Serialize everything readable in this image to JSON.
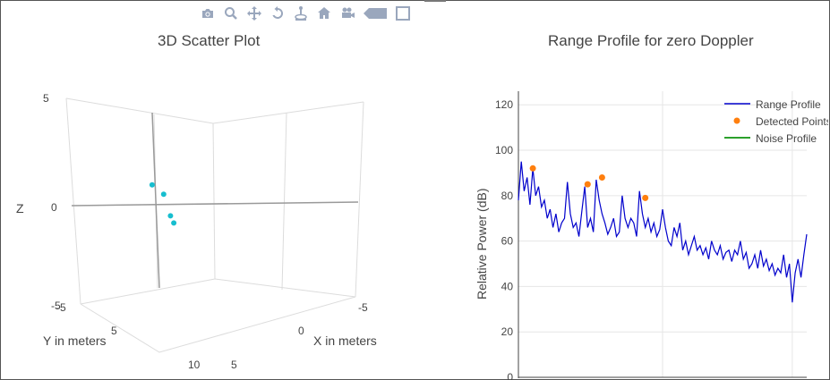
{
  "modebar": {
    "icons": [
      "camera-icon",
      "zoom-icon",
      "pan-icon",
      "orbit-icon",
      "turntable-icon",
      "home-icon",
      "camera-view-icon",
      "hover-icon",
      "spikelines-icon"
    ]
  },
  "colors": {
    "scatter_points": "#17becf",
    "range_profile": "#0000cc",
    "detected_points": "#ff7f0e",
    "noise_profile": "#2ca02c",
    "grid": "#e6e6e6",
    "modebar_icon": "#9aa7bd"
  },
  "left_title": "3D Scatter Plot",
  "right_title": "Range Profile for zero Doppler",
  "chart_data": [
    {
      "type": "scatter",
      "title": "3D Scatter Plot",
      "xlabel": "X in meters",
      "ylabel": "Y in meters",
      "zlabel": "Z",
      "x_ticks": [
        "-5",
        "0",
        "5"
      ],
      "y_ticks": [
        "-5",
        "5",
        "10"
      ],
      "z_ticks": [
        "5",
        "0",
        "-5"
      ],
      "x_range": [
        -5,
        5
      ],
      "y_range": [
        -5,
        10
      ],
      "z_range": [
        -5,
        5
      ],
      "points": [
        {
          "x": 0.6,
          "y": 0.5,
          "z": 1.0
        },
        {
          "x": 0.1,
          "y": 1.2,
          "z": 0.7
        },
        {
          "x": -0.2,
          "y": 1.6,
          "z": -0.3
        },
        {
          "x": -0.3,
          "y": 1.9,
          "z": -0.6
        }
      ],
      "marker_color": "#17becf",
      "grid": true
    },
    {
      "type": "line",
      "title": "Range Profile for zero Doppler",
      "ylabel": "Relative Power (dB)",
      "xlabel": "",
      "ylim": [
        0,
        126
      ],
      "yticks": [
        0,
        20,
        40,
        60,
        80,
        100,
        120
      ],
      "xlim": [
        0,
        100
      ],
      "grid": true,
      "legend_position": "top-right",
      "series": [
        {
          "name": "Range Profile",
          "color": "#0000cc",
          "x": [
            0,
            1,
            2,
            3,
            4,
            5,
            6,
            7,
            8,
            9,
            10,
            11,
            12,
            13,
            14,
            15,
            16,
            17,
            18,
            19,
            20,
            21,
            22,
            23,
            24,
            25,
            26,
            27,
            28,
            29,
            30,
            31,
            32,
            33,
            34,
            35,
            36,
            37,
            38,
            39,
            40,
            41,
            42,
            43,
            44,
            45,
            46,
            47,
            48,
            49,
            50,
            51,
            52,
            53,
            54,
            55,
            56,
            57,
            58,
            59,
            60,
            61,
            62,
            63,
            64,
            65,
            66,
            67,
            68,
            69,
            70,
            71,
            72,
            73,
            74,
            75,
            76,
            77,
            78,
            79,
            80,
            81,
            82,
            83,
            84,
            85,
            86,
            87,
            88,
            89,
            90,
            91,
            92,
            93,
            94,
            95,
            96,
            97,
            98,
            99,
            100
          ],
          "y": [
            78,
            95,
            82,
            88,
            76,
            92,
            80,
            84,
            75,
            78,
            70,
            74,
            66,
            72,
            64,
            68,
            70,
            86,
            72,
            66,
            68,
            62,
            73,
            84,
            66,
            70,
            64,
            87,
            78,
            72,
            68,
            63,
            66,
            70,
            62,
            64,
            80,
            70,
            66,
            70,
            68,
            62,
            82,
            72,
            66,
            70,
            64,
            68,
            62,
            65,
            74,
            66,
            60,
            58,
            66,
            62,
            68,
            56,
            60,
            54,
            58,
            62,
            56,
            58,
            54,
            57,
            52,
            60,
            56,
            54,
            58,
            52,
            55,
            56,
            51,
            56,
            54,
            60,
            52,
            55,
            48,
            50,
            54,
            48,
            56,
            49,
            52,
            47,
            50,
            45,
            48,
            46,
            54,
            44,
            50,
            33,
            46,
            52,
            44,
            54,
            63
          ]
        },
        {
          "name": "Detected Points",
          "color": "#ff7f0e",
          "x": [
            5,
            24,
            29,
            44
          ],
          "y": [
            92,
            85,
            88,
            79
          ]
        },
        {
          "name": "Noise Profile",
          "color": "#2ca02c",
          "x": [],
          "y": []
        }
      ]
    }
  ]
}
